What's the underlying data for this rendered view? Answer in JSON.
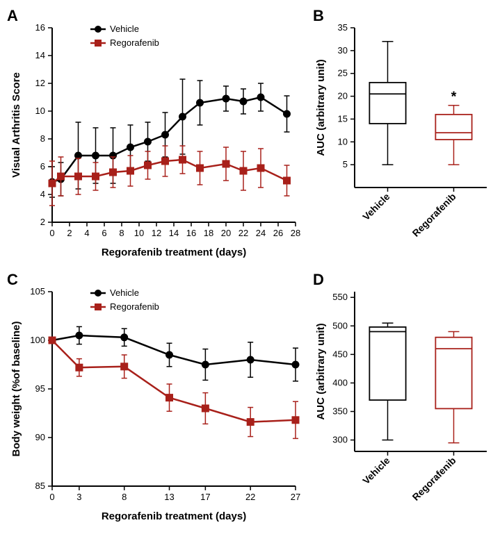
{
  "colors": {
    "vehicle_stroke": "#000000",
    "vehicle_fill": "#000000",
    "rego_stroke": "#a8201a",
    "rego_fill": "#a8201a",
    "axis": "#000000",
    "background": "#ffffff"
  },
  "typography": {
    "axis_label_fontsize": 15,
    "tick_fontsize": 13,
    "legend_fontsize": 13,
    "panel_label_fontsize": 22
  },
  "panelA": {
    "label": "A",
    "type": "line",
    "x_label": "Regorafenib treatment (days)",
    "y_label": "Visual Arthritis Score",
    "xlim": [
      0,
      28
    ],
    "ylim": [
      2,
      16
    ],
    "xticks": [
      0,
      2,
      4,
      6,
      8,
      10,
      12,
      14,
      16,
      18,
      20,
      22,
      24,
      26,
      28
    ],
    "yticks": [
      2,
      4,
      6,
      8,
      10,
      12,
      14,
      16
    ],
    "series": {
      "Vehicle": {
        "marker": "circle",
        "x": [
          0,
          1,
          3,
          5,
          7,
          9,
          11,
          13,
          15,
          17,
          20,
          22,
          24,
          27
        ],
        "y": [
          4.9,
          5.1,
          6.8,
          6.8,
          6.8,
          7.4,
          7.8,
          8.3,
          9.6,
          10.6,
          10.9,
          10.7,
          11.0,
          9.8
        ],
        "err": [
          1.1,
          1.2,
          2.4,
          2.0,
          2.0,
          1.6,
          1.4,
          1.6,
          2.7,
          1.6,
          0.9,
          0.9,
          1.0,
          1.3
        ]
      },
      "Regorafenib": {
        "marker": "square",
        "x": [
          0,
          1,
          3,
          5,
          7,
          9,
          11,
          13,
          15,
          17,
          20,
          22,
          24,
          27
        ],
        "y": [
          4.8,
          5.3,
          5.3,
          5.3,
          5.6,
          5.7,
          6.1,
          6.4,
          6.5,
          5.9,
          6.2,
          5.7,
          5.9,
          5.0
        ],
        "err": [
          1.6,
          1.4,
          1.3,
          1.0,
          1.1,
          1.1,
          1.0,
          1.1,
          1.0,
          1.2,
          1.2,
          1.4,
          1.4,
          1.1
        ]
      }
    },
    "legend": [
      "Vehicle",
      "Regorafenib"
    ]
  },
  "panelB": {
    "label": "B",
    "type": "boxplot",
    "y_label": "AUC (arbitrary unit)",
    "ylim": [
      0,
      35
    ],
    "yticks": [
      5,
      10,
      15,
      20,
      25,
      30,
      35
    ],
    "categories": [
      "Vehicle",
      "Regorafenib"
    ],
    "boxes": {
      "Vehicle": {
        "min": 5,
        "q1": 14,
        "median": 20.5,
        "q3": 23,
        "max": 32,
        "stroke": "#000000"
      },
      "Regorafenib": {
        "min": 5,
        "q1": 10.5,
        "median": 12,
        "q3": 16,
        "max": 18,
        "stroke": "#a8201a"
      }
    },
    "annotation": {
      "text": "*",
      "target": "Regorafenib"
    }
  },
  "panelC": {
    "label": "C",
    "type": "line",
    "x_label": "Regorafenib treatment (days)",
    "y_label": "Body weight (%of baseline)",
    "xlim": [
      0,
      27
    ],
    "ylim": [
      85,
      105
    ],
    "xticks": [
      0,
      3,
      8,
      13,
      17,
      22,
      27
    ],
    "yticks": [
      85,
      90,
      95,
      100,
      105
    ],
    "series": {
      "Vehicle": {
        "marker": "circle",
        "x": [
          0,
          3,
          8,
          13,
          17,
          22,
          27
        ],
        "y": [
          100,
          100.5,
          100.3,
          98.5,
          97.5,
          98.0,
          97.5
        ],
        "err": [
          0,
          0.9,
          0.9,
          1.2,
          1.6,
          1.8,
          1.7
        ]
      },
      "Regorafenib": {
        "marker": "square",
        "x": [
          0,
          3,
          8,
          13,
          17,
          22,
          27
        ],
        "y": [
          100,
          97.2,
          97.3,
          94.1,
          93.0,
          91.6,
          91.8
        ],
        "err": [
          0,
          0.9,
          1.2,
          1.4,
          1.6,
          1.5,
          1.9
        ]
      }
    },
    "legend": [
      "Vehicle",
      "Regorafenib"
    ]
  },
  "panelD": {
    "label": "D",
    "type": "boxplot",
    "y_label": "AUC (arbitrary unit)",
    "ylim": [
      280,
      560
    ],
    "yticks": [
      300,
      350,
      400,
      450,
      500,
      550
    ],
    "categories": [
      "Vehicle",
      "Regorafenib"
    ],
    "boxes": {
      "Vehicle": {
        "min": 300,
        "q1": 370,
        "median": 490,
        "q3": 498,
        "max": 505,
        "stroke": "#000000"
      },
      "Regorafenib": {
        "min": 295,
        "q1": 355,
        "median": 460,
        "q3": 480,
        "max": 490,
        "stroke": "#a8201a"
      }
    }
  }
}
